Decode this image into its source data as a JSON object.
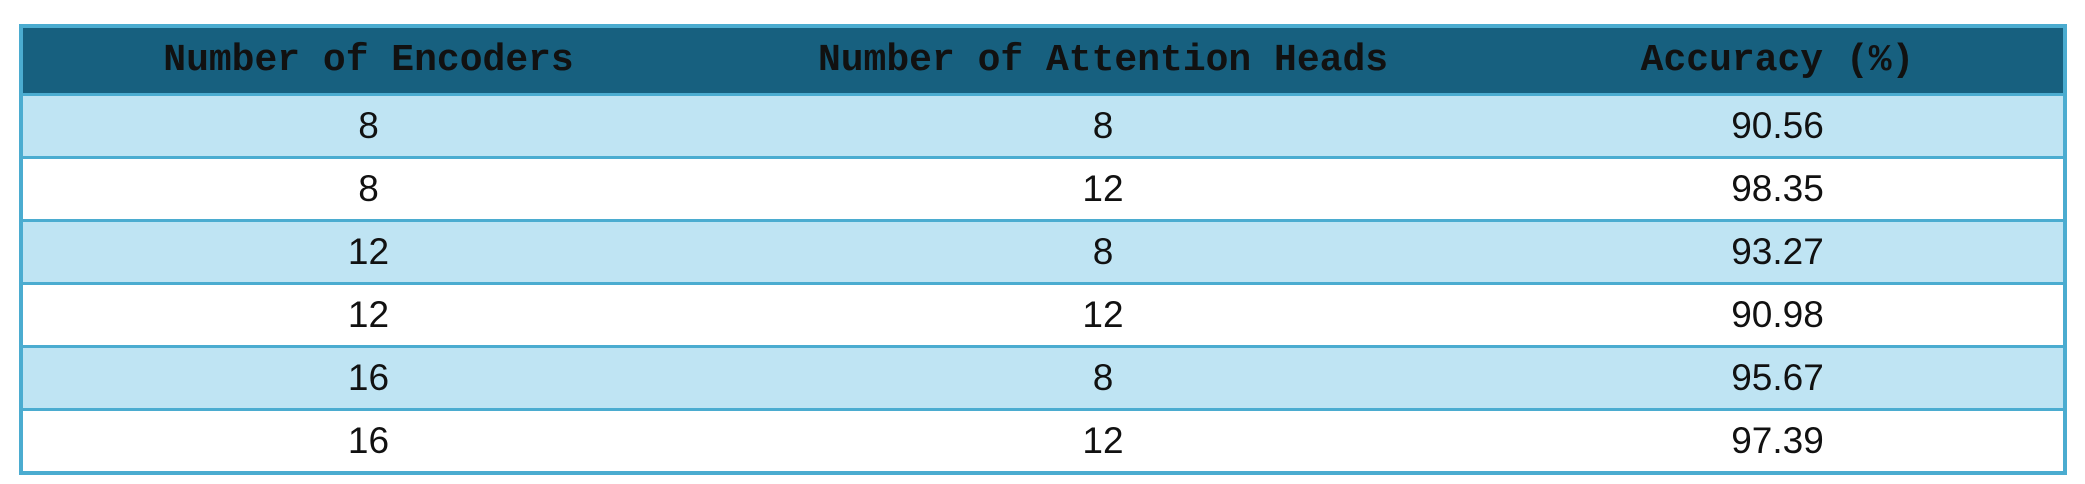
{
  "table": {
    "headers": [
      "Number of Encoders",
      "Number of Attention Heads",
      "Accuracy (%)"
    ],
    "rows": [
      [
        "8",
        "8",
        "90.56"
      ],
      [
        "8",
        "12",
        "98.35"
      ],
      [
        "12",
        "8",
        "93.27"
      ],
      [
        "12",
        "12",
        "90.98"
      ],
      [
        "16",
        "8",
        "95.67"
      ],
      [
        "16",
        "12",
        "97.39"
      ]
    ],
    "colors": {
      "header_bg": "#17607f",
      "border": "#4bacd0",
      "shaded_row_bg": "#bfe4f3",
      "plain_row_bg": "#ffffff"
    }
  }
}
